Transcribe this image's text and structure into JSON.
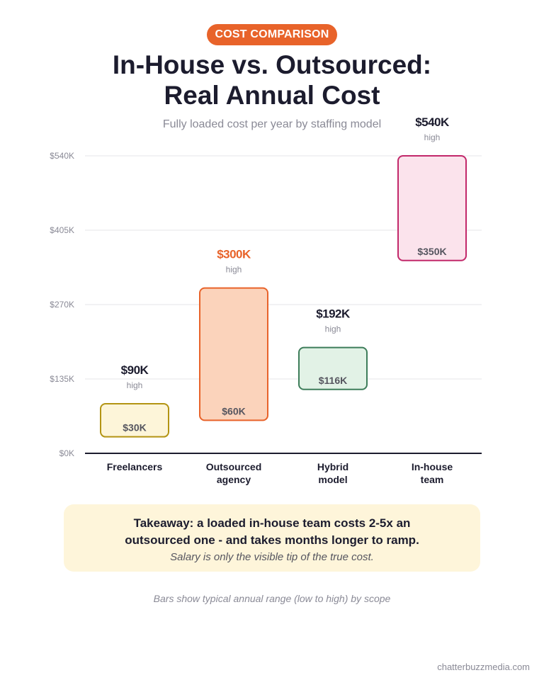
{
  "badge": "COST COMPARISON",
  "title_line1": "In-House vs. Outsourced:",
  "title_line2": "Real Annual Cost",
  "subtitle": "Fully loaded cost per year by staffing model",
  "chart_data": {
    "type": "bar",
    "subtype": "floating-range",
    "categories": [
      [
        "Freelancers"
      ],
      [
        "Outsourced",
        "agency"
      ],
      [
        "Hybrid",
        "model"
      ],
      [
        "In-house",
        "team"
      ]
    ],
    "low": [
      30000,
      60000,
      116000,
      350000
    ],
    "high": [
      90000,
      300000,
      192000,
      540000
    ],
    "low_labels": [
      "$30K",
      "$60K",
      "$116K",
      "$350K"
    ],
    "high_labels": [
      "$90K",
      "$300K",
      "$192K",
      "$540K"
    ],
    "high_caption": "high",
    "ylim": [
      0,
      540000
    ],
    "yticks": [
      0,
      135000,
      270000,
      405000,
      540000
    ],
    "ytick_labels": [
      "$0K",
      "$135K",
      "$270K",
      "$405K",
      "$540K"
    ],
    "grid": true,
    "colors": {
      "fills": [
        "#fdf5d9",
        "#fbd3bb",
        "#e2f2e6",
        "#fbe3ec"
      ],
      "strokes": [
        "#b39413",
        "#e8632a",
        "#3d7d5a",
        "#c2286a"
      ],
      "high_label_colors": [
        "#1c1c2e",
        "#e8632a",
        "#1c1c2e",
        "#1c1c2e"
      ]
    }
  },
  "takeaway": {
    "line1": "Takeaway: a loaded in-house team costs 2-5x an",
    "line1b": "outsourced one - and takes months longer to ramp.",
    "line2": "Salary is only the visible tip of the true cost."
  },
  "footnote": "Bars show typical annual range (low to high) by scope",
  "credit": "chatterbuzzmedia.com"
}
